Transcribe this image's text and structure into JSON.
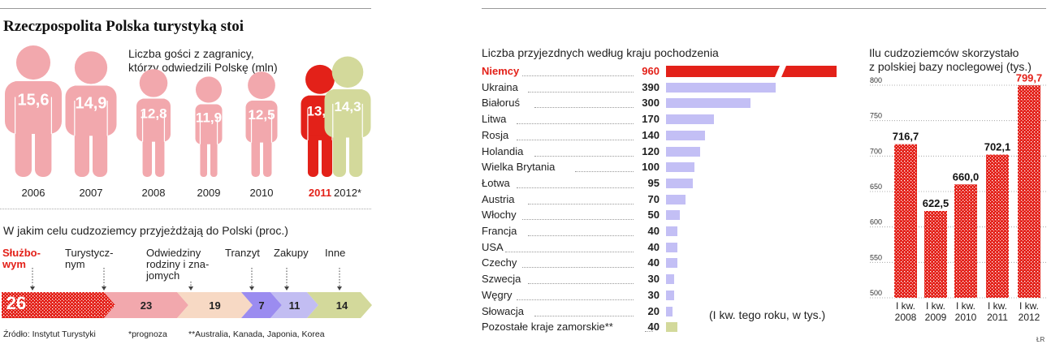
{
  "colors": {
    "accent": "#e32119",
    "pink": "#f2a8ad",
    "lilac": "#c3bff5",
    "olive": "#d3d99b",
    "peach": "#f7d9c4",
    "purple": "#9b8cf0",
    "lavender": "#c2bdf2"
  },
  "header": {
    "title": "Rzeczpospolita Polska turystyką stoi"
  },
  "visitors": {
    "subtitle_line1": "Liczba gości z zagranicy,",
    "subtitle_line2": "którzy odwiedzili Polskę (mln)"
  },
  "purpose": {
    "title": "W jakim celu cudzoziemcy przyjeżdżają do Polski (proc.)",
    "labels": [
      {
        "lines": [
          "Służbo-",
          "wym"
        ]
      },
      {
        "lines": [
          "Turystycz-",
          "nym"
        ]
      },
      {
        "lines": [
          "Odwiedziny",
          "rodziny i zna-",
          "jomych"
        ]
      },
      {
        "lines": [
          "Tranzyt"
        ]
      },
      {
        "lines": [
          "Zakupy"
        ]
      },
      {
        "lines": [
          "Inne"
        ]
      }
    ]
  },
  "footer": {
    "source": "Źródło: Instytut Turystyki",
    "note1": "*prognoza",
    "note2": "**Australia, Kanada, Japonia, Korea"
  },
  "countries": {
    "title": "Liczba przyjezdnych według kraju pochodzenia",
    "note": "(I kw. tego roku, w tys.)"
  },
  "accommodation": {
    "title_line1": "Ilu cudzoziemców skorzystało",
    "title_line2": "z polskiej bazy noclegowej (tys.)",
    "credit": "ŁR"
  },
  "chart_data": [
    {
      "type": "bar",
      "title": "Liczba gości z zagranicy, którzy odwiedzili Polskę (mln)",
      "categories": [
        "2006",
        "2007",
        "2008",
        "2009",
        "2010",
        "2011",
        "2012*"
      ],
      "values": [
        15.6,
        14.9,
        12.8,
        11.9,
        12.5,
        13.3,
        14.3
      ],
      "value_labels": [
        "15,6",
        "14,9",
        "12,8",
        "11,9",
        "12,5",
        "13,3",
        "14,3"
      ],
      "highlight": "2011",
      "forecast": "2012*"
    },
    {
      "type": "bar",
      "title": "W jakim celu cudzoziemcy przyjeżdżają do Polski (proc.)",
      "categories": [
        "Służbowym",
        "Turystycznym",
        "Odwiedziny rodziny i znajomych",
        "Tranzyt",
        "Zakupy",
        "Inne"
      ],
      "values": [
        26,
        23,
        19,
        7,
        11,
        14
      ]
    },
    {
      "type": "bar",
      "title": "Liczba przyjezdnych według kraju pochodzenia",
      "categories": [
        "Niemcy",
        "Ukraina",
        "Białoruś",
        "Litwa",
        "Rosja",
        "Holandia",
        "Wielka Brytania",
        "Łotwa",
        "Austria",
        "Włochy",
        "Francja",
        "USA",
        "Czechy",
        "Szwecja",
        "Węgry",
        "Słowacja",
        "Pozostałe kraje zamorskie**"
      ],
      "values": [
        960,
        390,
        300,
        170,
        140,
        120,
        100,
        95,
        70,
        50,
        40,
        40,
        40,
        30,
        30,
        20,
        40
      ],
      "highlight": "Niemcy",
      "axis_break": true
    },
    {
      "type": "bar",
      "title": "Ilu cudzoziemców skorzystało z polskiej bazy noclegowej (tys.)",
      "categories": [
        "I kw. 2008",
        "I kw. 2009",
        "I kw. 2010",
        "I kw. 2011",
        "I kw. 2012"
      ],
      "values": [
        716.7,
        622.5,
        660.0,
        702.1,
        799.7
      ],
      "value_labels": [
        "716,7",
        "622,5",
        "660,0",
        "702,1",
        "799,7"
      ],
      "yticks": [
        "500",
        "550",
        "600",
        "650",
        "700",
        "750",
        "800"
      ],
      "ylim": [
        500,
        800
      ],
      "highlight": "I kw. 2012"
    }
  ]
}
